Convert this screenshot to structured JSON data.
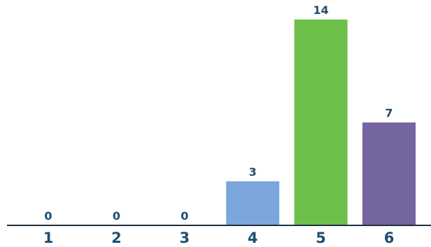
{
  "chart_data": {
    "type": "bar",
    "categories": [
      "1",
      "2",
      "3",
      "4",
      "5",
      "6"
    ],
    "values": [
      0,
      0,
      0,
      3,
      14,
      7
    ],
    "colors": [
      "#7aa6dc",
      "#7aa6dc",
      "#7aa6dc",
      "#7aa6dc",
      "#6cc04a",
      "#75659f"
    ],
    "label_color": "#1f4e6f",
    "axis_color": "#1f2f3f",
    "title": "",
    "xlabel": "",
    "ylabel": "",
    "ylim": [
      0,
      14
    ],
    "grid": false,
    "legend": "none"
  }
}
